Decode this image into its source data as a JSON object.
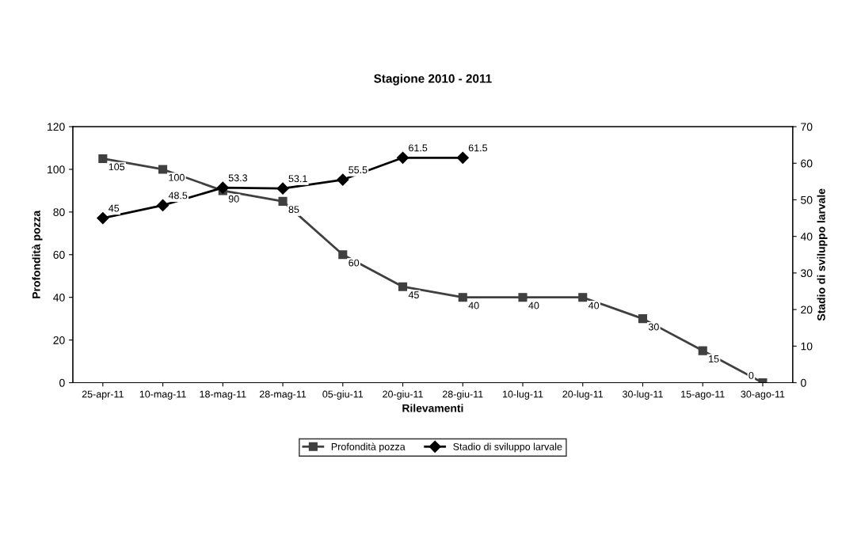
{
  "chart_data": {
    "type": "line",
    "title": "Stagione 2010 - 2011",
    "xlabel": "Rilevamenti",
    "ylabel": "Profondità pozza",
    "y2label": "Stadio di sviluppo larvale",
    "categories": [
      "25-apr-11",
      "10-mag-11",
      "18-mag-11",
      "28-mag-11",
      "05-giu-11",
      "20-giu-11",
      "28-giu-11",
      "10-lug-11",
      "20-lug-11",
      "30-lug-11",
      "15-ago-11",
      "30-ago-11"
    ],
    "series": [
      {
        "name": "Profondità pozza",
        "color": "#404040",
        "marker": "square",
        "values": [
          105,
          100,
          90,
          85,
          60,
          45,
          40,
          40,
          40,
          30,
          15,
          0
        ]
      },
      {
        "name": "Stadio di sviluppo larvale",
        "color": "#000000",
        "marker": "diamond",
        "axis": "y2",
        "values": [
          45,
          48.5,
          53.3,
          53.1,
          55.5,
          61.5,
          61.5,
          null,
          null,
          null,
          null,
          null
        ]
      }
    ],
    "ylim": [
      0,
      120
    ],
    "yticks": [
      0,
      20,
      40,
      60,
      80,
      100,
      120
    ],
    "y2lim": [
      0,
      70
    ],
    "y2ticks": [
      0,
      10,
      20,
      30,
      40,
      50,
      60,
      70
    ],
    "data_labels": true,
    "grid": false,
    "legend": "bottom",
    "line_style": "solid"
  }
}
